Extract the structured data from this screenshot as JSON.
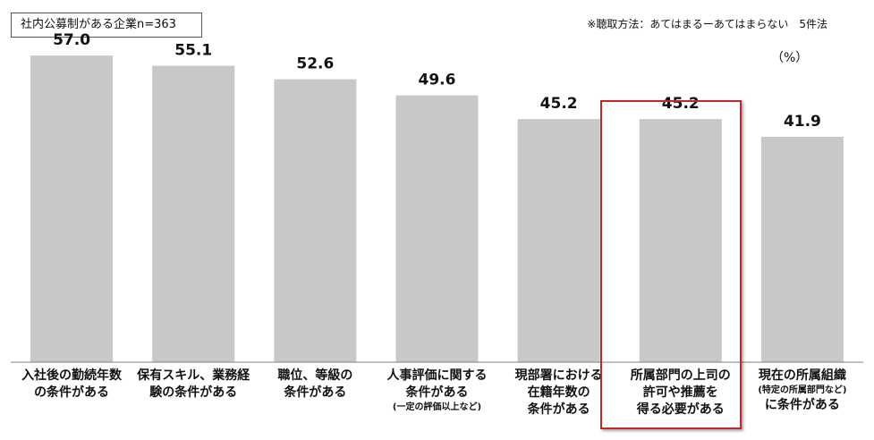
{
  "sample_label": "社内公募制がある企業n=363",
  "method_note": "※聴取方法：あてはまるーあてはまらない　5件法",
  "unit_label": "（%）",
  "colors": {
    "bar": "#c8c8c8",
    "highlight": "#c0272d",
    "axis": "#7f7f7f"
  },
  "chart_data": {
    "type": "bar",
    "title": "",
    "xlabel": "",
    "ylabel": "",
    "ylim": [
      0,
      65
    ],
    "grid": false,
    "highlighted_index": 5,
    "categories": [
      [
        "入社後の勤続年数",
        "の条件がある"
      ],
      [
        "保有スキル、業務経",
        "験の条件がある"
      ],
      [
        "職位、等級の",
        "条件がある"
      ],
      [
        "人事評価に関する",
        "条件がある",
        "(一定の評価以上など)"
      ],
      [
        "現部署における",
        "在籍年数の",
        "条件がある"
      ],
      [
        "所属部門の上司の",
        "許可や推薦を",
        "得る必要がある"
      ],
      [
        "現在の所属組織",
        "(特定の所属部門など)",
        "に条件がある"
      ]
    ],
    "small_lines": [
      [],
      [],
      [],
      [
        2
      ],
      [],
      [],
      [
        1
      ]
    ],
    "values": [
      57.0,
      55.1,
      52.6,
      49.6,
      45.2,
      45.2,
      41.9
    ],
    "value_labels": [
      "57.0",
      "55.1",
      "52.6",
      "49.6",
      "45.2",
      "45.2",
      "41.9"
    ]
  }
}
